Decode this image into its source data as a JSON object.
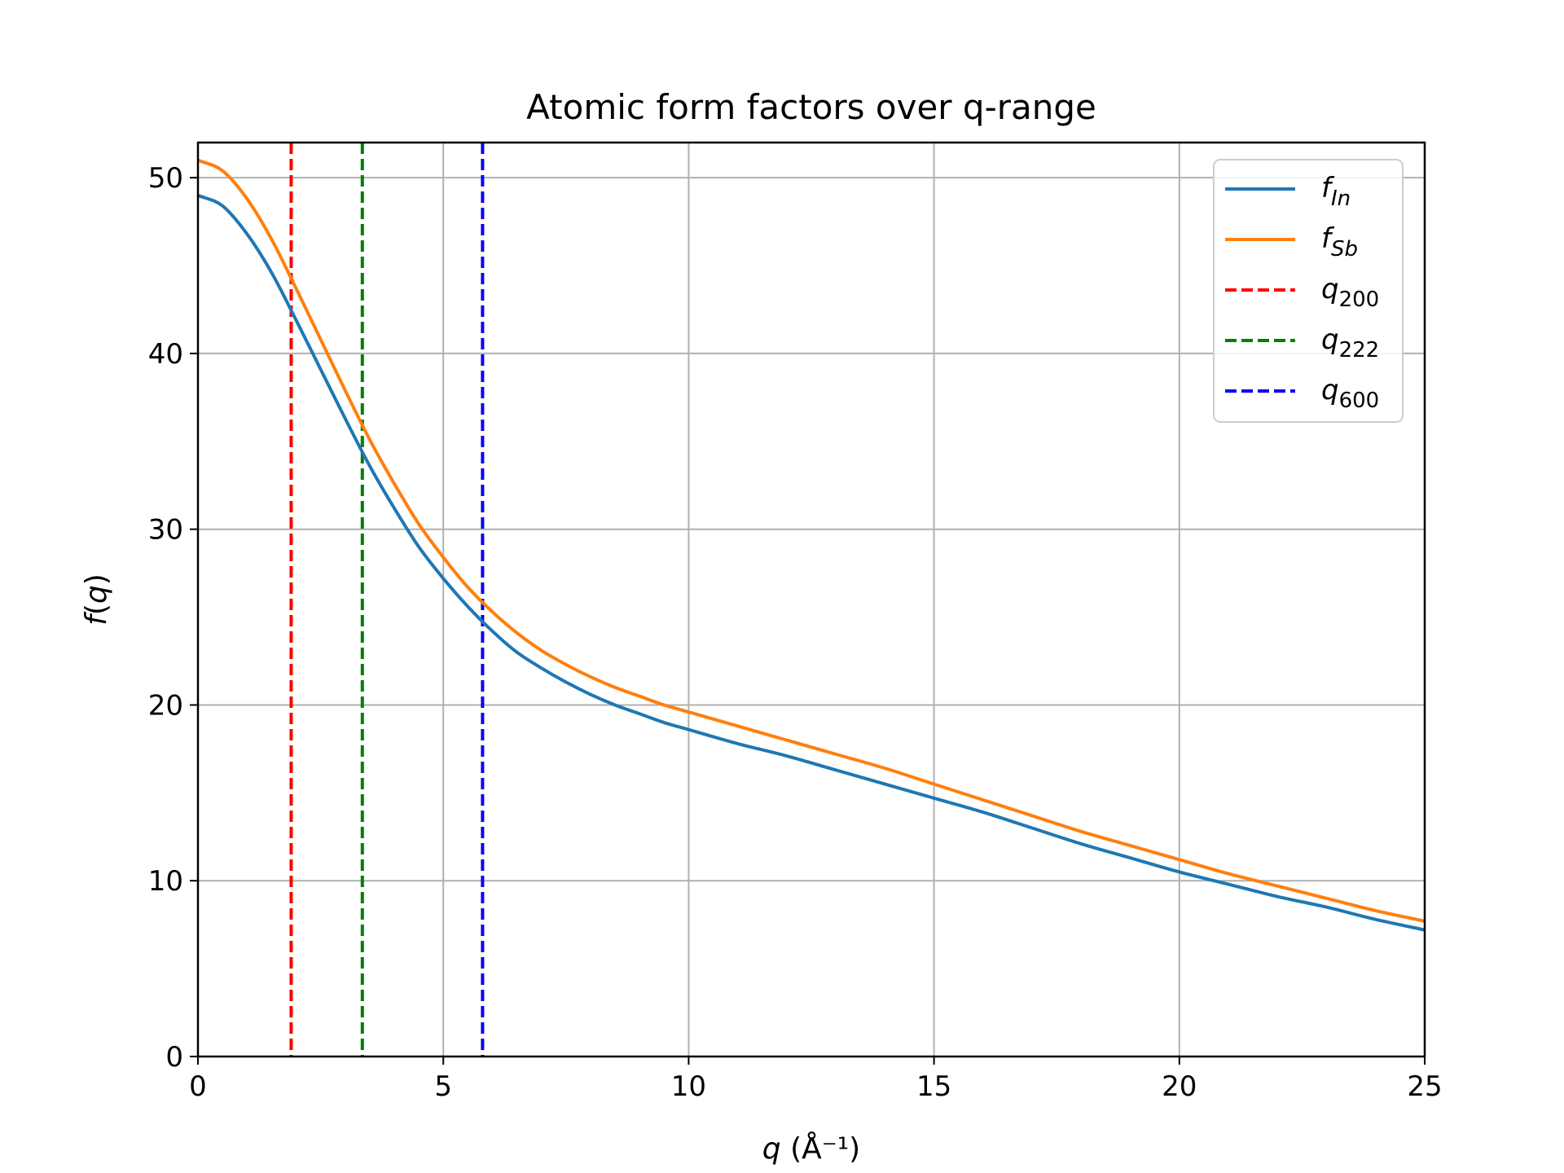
{
  "chart_data": {
    "type": "line",
    "title": "Atomic form factors over q-range",
    "xlabel": "q (Å⁻¹)",
    "ylabel": "f(q)",
    "xlim": [
      0,
      25
    ],
    "ylim": [
      0,
      52
    ],
    "xticks": [
      0,
      5,
      10,
      15,
      20,
      25
    ],
    "yticks": [
      0,
      10,
      20,
      30,
      40,
      50
    ],
    "xtick_labels": [
      "0",
      "5",
      "10",
      "15",
      "20",
      "25"
    ],
    "ytick_labels": [
      "0",
      "10",
      "20",
      "30",
      "40",
      "50"
    ],
    "grid": true,
    "legend_position": "top-right",
    "series": [
      {
        "name": "f_In",
        "label_main": "f",
        "label_sub": "In",
        "color": "#1f77b4",
        "style": "solid",
        "x": [
          0,
          0.5,
          1,
          1.5,
          2,
          2.5,
          3,
          3.5,
          4,
          4.5,
          5,
          5.5,
          6,
          6.5,
          7,
          7.5,
          8,
          8.5,
          9,
          9.5,
          10,
          11,
          12,
          13,
          14,
          15,
          16,
          17,
          18,
          19,
          20,
          21,
          22,
          23,
          24,
          25
        ],
        "y": [
          49.0,
          48.4,
          46.8,
          44.6,
          41.9,
          39.1,
          36.3,
          33.6,
          31.2,
          29.0,
          27.2,
          25.6,
          24.2,
          23.0,
          22.1,
          21.3,
          20.6,
          20.0,
          19.5,
          19.0,
          18.6,
          17.8,
          17.1,
          16.3,
          15.5,
          14.7,
          13.9,
          13.0,
          12.1,
          11.3,
          10.5,
          9.8,
          9.1,
          8.5,
          7.8,
          7.2
        ]
      },
      {
        "name": "f_Sb",
        "label_main": "f",
        "label_sub": "Sb",
        "color": "#ff7f0e",
        "style": "solid",
        "x": [
          0,
          0.5,
          1,
          1.5,
          2,
          2.5,
          3,
          3.5,
          4,
          4.5,
          5,
          5.5,
          6,
          6.5,
          7,
          7.5,
          8,
          8.5,
          9,
          9.5,
          10,
          11,
          12,
          13,
          14,
          15,
          16,
          17,
          18,
          19,
          20,
          21,
          22,
          23,
          24,
          25
        ],
        "y": [
          51.0,
          50.4,
          48.8,
          46.5,
          43.7,
          40.8,
          37.9,
          35.1,
          32.6,
          30.3,
          28.4,
          26.7,
          25.3,
          24.1,
          23.1,
          22.3,
          21.6,
          21.0,
          20.5,
          20.0,
          19.6,
          18.8,
          18.0,
          17.2,
          16.4,
          15.5,
          14.6,
          13.7,
          12.8,
          12.0,
          11.2,
          10.4,
          9.7,
          9.0,
          8.3,
          7.7
        ]
      }
    ],
    "vlines": [
      {
        "name": "q_200",
        "label_main": "q",
        "label_sub": "200",
        "x": 1.9,
        "color": "#ff0000",
        "style": "dashed"
      },
      {
        "name": "q_222",
        "label_main": "q",
        "label_sub": "222",
        "x": 3.35,
        "color": "#008000",
        "style": "dashed"
      },
      {
        "name": "q_600",
        "label_main": "q",
        "label_sub": "600",
        "x": 5.8,
        "color": "#0000ff",
        "style": "dashed"
      }
    ]
  }
}
